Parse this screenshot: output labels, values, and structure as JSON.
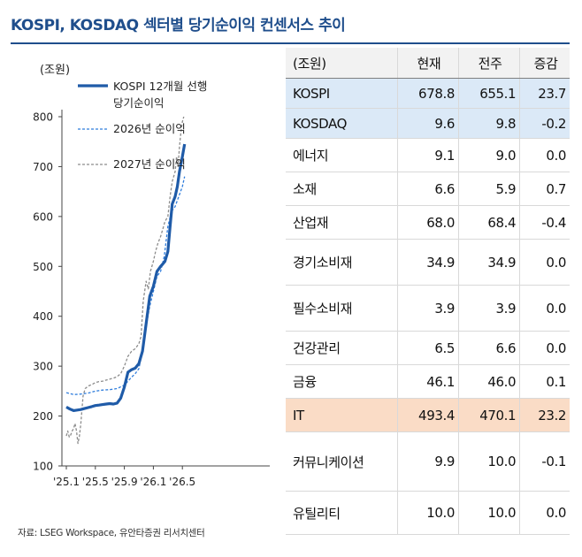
{
  "title": "KOSPI, KOSDAQ 섹터별 당기순이익 컨센서스 추이",
  "source": "자료: LSEG Workspace, 유안타증권 리서치센터",
  "chart_data": {
    "type": "line",
    "ylabel": "(조원)",
    "ylim": [
      100,
      800
    ],
    "yticks": [
      100,
      200,
      300,
      400,
      500,
      600,
      700,
      800
    ],
    "xticks": [
      "'25.1",
      "'25.5",
      "'25.9",
      "'26.1",
      "'26.5"
    ],
    "grid": false,
    "legend": "top-left",
    "series": [
      {
        "name": "KOSPI 12개월 선행 당기순이익",
        "color": "#1f5ba8",
        "style": "solid",
        "x": [
          0,
          0.5,
          1,
          1.5,
          2,
          2.5,
          3,
          3.5,
          4,
          4.5,
          5,
          5.5,
          6,
          6.5,
          7,
          7.5,
          8,
          8.5,
          9,
          9.5,
          10,
          10.5,
          11,
          11.5,
          12,
          12.5,
          13,
          13.3,
          13.6,
          14,
          14.3,
          14.6,
          15,
          15.3,
          15.6,
          16,
          16.3
        ],
        "values": [
          218,
          214,
          211,
          212,
          213,
          215,
          217,
          219,
          221,
          222,
          223,
          224,
          225,
          224,
          226,
          236,
          258,
          288,
          293,
          296,
          305,
          330,
          385,
          440,
          460,
          490,
          500,
          505,
          510,
          530,
          580,
          625,
          640,
          660,
          690,
          720,
          745
        ]
      },
      {
        "name": "2026년 순이익",
        "color": "#2f7ddc",
        "style": "dashed",
        "x": [
          0,
          1,
          2,
          3,
          4,
          5,
          6,
          7,
          8,
          8.5,
          9,
          9.5,
          10,
          10.5,
          11,
          11.5,
          12,
          12.5,
          13,
          13.5,
          14,
          14.5,
          15,
          15.5,
          16,
          16.3
        ],
        "values": [
          247,
          243,
          244,
          246,
          250,
          252,
          253,
          255,
          262,
          270,
          278,
          285,
          295,
          330,
          380,
          420,
          450,
          480,
          490,
          520,
          580,
          610,
          620,
          640,
          660,
          680
        ]
      },
      {
        "name": "2027년 순이익",
        "color": "#8c8c8c",
        "style": "dashed",
        "x": [
          0,
          0.2,
          0.4,
          0.6,
          0.8,
          1,
          1.2,
          1.4,
          1.6,
          1.8,
          2,
          2.3,
          2.6,
          3,
          3.5,
          4,
          4.5,
          5,
          5.5,
          6,
          6.5,
          7,
          7.5,
          8,
          8.5,
          9,
          9.5,
          10,
          10.3,
          10.6,
          11,
          11.3,
          11.6,
          12,
          12.3,
          12.6,
          13,
          13.3,
          13.6,
          14,
          14.3,
          14.6,
          15,
          15.2,
          15.4,
          15.6,
          15.8,
          16,
          16.2
        ],
        "values": [
          160,
          170,
          158,
          162,
          170,
          175,
          185,
          170,
          145,
          160,
          185,
          240,
          255,
          260,
          263,
          267,
          269,
          270,
          272,
          274,
          276,
          279,
          285,
          300,
          320,
          330,
          335,
          345,
          360,
          430,
          470,
          455,
          490,
          510,
          530,
          545,
          560,
          575,
          590,
          600,
          640,
          670,
          690,
          720,
          700,
          740,
          770,
          790,
          800
        ]
      }
    ]
  },
  "table": {
    "headers": [
      "(조원)",
      "현재",
      "전주",
      "증감"
    ],
    "rows": [
      {
        "name": "KOSPI",
        "cur": "678.8",
        "prev": "655.1",
        "chg": "23.7",
        "hl": "blue"
      },
      {
        "name": "KOSDAQ",
        "cur": "9.6",
        "prev": "9.8",
        "chg": "-0.2",
        "hl": "blue"
      },
      {
        "name": "에너지",
        "cur": "9.1",
        "prev": "9.0",
        "chg": "0.0",
        "hl": ""
      },
      {
        "name": "소재",
        "cur": "6.6",
        "prev": "5.9",
        "chg": "0.7",
        "hl": ""
      },
      {
        "name": "산업재",
        "cur": "68.0",
        "prev": "68.4",
        "chg": "-0.4",
        "hl": ""
      },
      {
        "name": "경기소비재",
        "cur": "34.9",
        "prev": "34.9",
        "chg": "0.0",
        "hl": ""
      },
      {
        "name": "필수소비재",
        "cur": "3.9",
        "prev": "3.9",
        "chg": "0.0",
        "hl": ""
      },
      {
        "name": "건강관리",
        "cur": "6.5",
        "prev": "6.6",
        "chg": "0.0",
        "hl": ""
      },
      {
        "name": "금융",
        "cur": "46.1",
        "prev": "46.0",
        "chg": "0.1",
        "hl": ""
      },
      {
        "name": "IT",
        "cur": "493.4",
        "prev": "470.1",
        "chg": "23.2",
        "hl": "orange"
      },
      {
        "name": "커뮤니케이션",
        "cur": "9.9",
        "prev": "10.0",
        "chg": "-0.1",
        "hl": ""
      },
      {
        "name": "유틸리티",
        "cur": "10.0",
        "prev": "10.0",
        "chg": "0.0",
        "hl": ""
      }
    ],
    "colors": {
      "blue": "#dbe9f7",
      "orange": "#fadcc6"
    }
  }
}
